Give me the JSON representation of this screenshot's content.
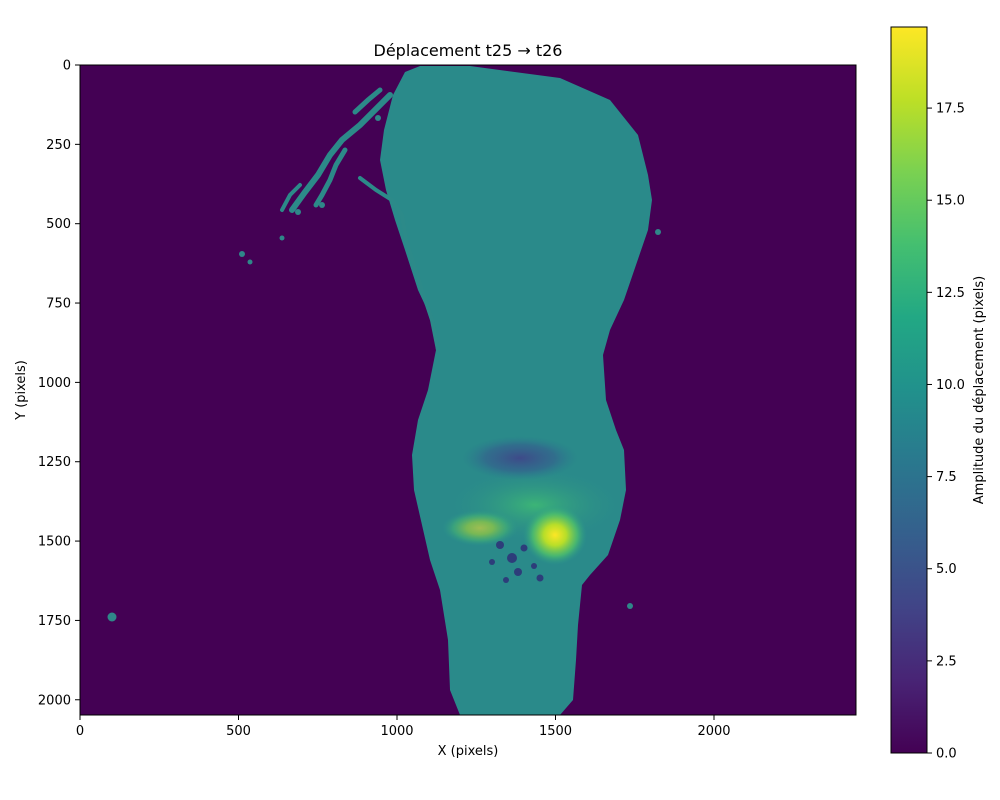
{
  "chart_data": {
    "type": "heatmap",
    "title": "Déplacement t25 → t26",
    "xlabel": "X (pixels)",
    "ylabel": "Y (pixels)",
    "xlim": [
      0,
      2448
    ],
    "ylim": [
      2048,
      0
    ],
    "x_ticks": [
      0,
      500,
      1000,
      1500,
      2000
    ],
    "y_ticks": [
      0,
      250,
      500,
      750,
      1000,
      1250,
      1500,
      1750,
      2000
    ],
    "colormap": "viridis",
    "background_value": 0.0,
    "body_typical_value": 8.8,
    "peak": {
      "x": 1500,
      "y": 1490,
      "value": 19.5
    },
    "low_zone": {
      "x": 1430,
      "y": 1260,
      "value": 3.5
    },
    "colorbar": {
      "label": "Amplitude du déplacement (pixels)",
      "range": [
        0,
        19.7
      ],
      "ticks": [
        "0.0",
        "2.5",
        "5.0",
        "7.5",
        "10.0",
        "12.5",
        "15.0",
        "17.5"
      ]
    },
    "grid": false
  },
  "colors": {
    "background": "#440154",
    "body": "#2a8a8a",
    "body_light": "#318d8c",
    "hot": "#fde725",
    "warm": "#6ccd5a",
    "cool": "#3b528b"
  }
}
